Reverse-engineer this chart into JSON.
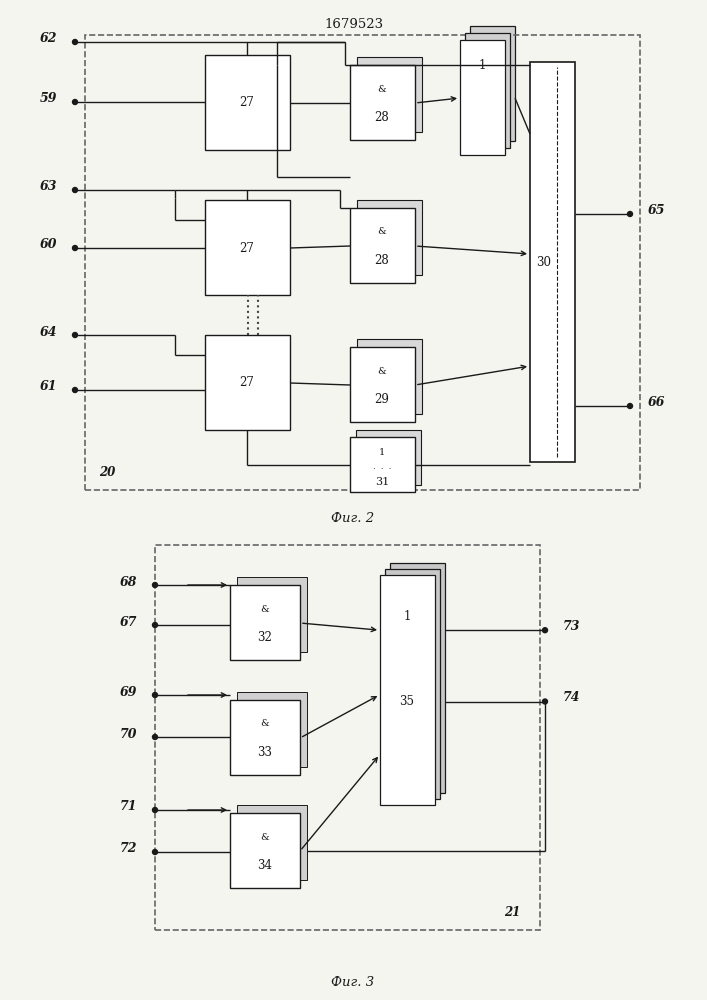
{
  "title": "1679523",
  "fig1_caption": "Фиг. 2",
  "fig2_caption": "Фиг. 3",
  "bg_color": "#f5f5f0"
}
